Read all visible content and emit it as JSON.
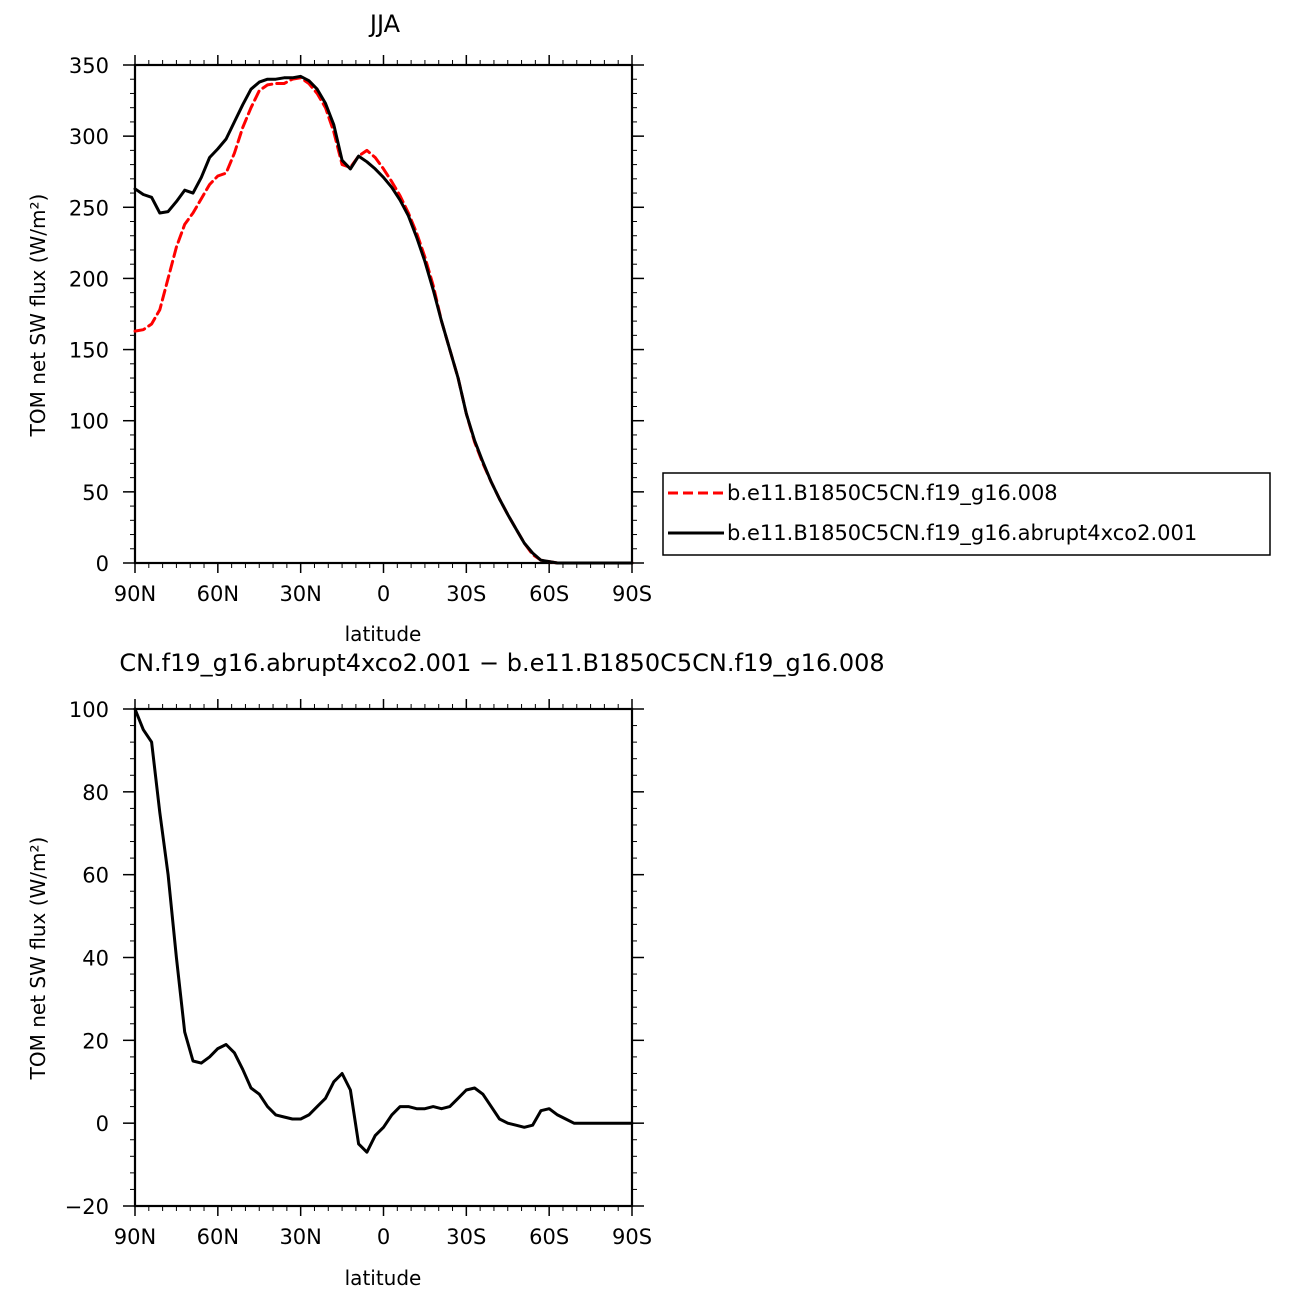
{
  "chart_data": [
    {
      "type": "line",
      "title": "JJA",
      "xlabel": "latitude",
      "ylabel": "TOM net SW flux (W/m²)",
      "xlim": [
        -90,
        90
      ],
      "ylim": [
        0,
        350
      ],
      "xticks": [
        -90,
        -60,
        -30,
        0,
        30,
        60,
        90
      ],
      "xtick_labels": [
        "90N",
        "60N",
        "30N",
        "0",
        "30S",
        "60S",
        "90S"
      ],
      "yticks": [
        0,
        50,
        100,
        150,
        200,
        250,
        300,
        350
      ],
      "ytick_labels": [
        "0",
        "50",
        "100",
        "150",
        "200",
        "250",
        "300",
        "350"
      ],
      "legend_position": "right",
      "series": [
        {
          "name": "b.e11.B1850C5CN.f19_g16.008",
          "color": "#ff0000",
          "style": "dashed",
          "x": [
            -90,
            -87,
            -84,
            -81,
            -78,
            -75,
            -72,
            -69,
            -66,
            -63,
            -60,
            -57,
            -54,
            -51,
            -48,
            -45,
            -42,
            -39,
            -36,
            -33,
            -30,
            -27,
            -24,
            -21,
            -18,
            -15,
            -12,
            -9,
            -6,
            -3,
            0,
            3,
            6,
            9,
            12,
            15,
            18,
            21,
            24,
            27,
            30,
            33,
            36,
            39,
            42,
            45,
            48,
            51,
            54,
            57,
            60,
            63,
            66,
            69,
            72,
            75,
            78,
            81,
            84,
            87,
            90
          ],
          "y": [
            163,
            164,
            168,
            178,
            200,
            222,
            238,
            246,
            256,
            266,
            272,
            274,
            288,
            306,
            320,
            332,
            336,
            337,
            337,
            340,
            341,
            337,
            330,
            320,
            303,
            280,
            278,
            286,
            290,
            285,
            277,
            268,
            258,
            246,
            232,
            215,
            195,
            170,
            150,
            130,
            105,
            85,
            70,
            57,
            45,
            34,
            24,
            14,
            6,
            2,
            1,
            0,
            0,
            0,
            0,
            0,
            0,
            0,
            0,
            0,
            0
          ]
        },
        {
          "name": "b.e11.B1850C5CN.f19_g16.abrupt4xco2.001",
          "color": "#000000",
          "style": "solid",
          "x": [
            -90,
            -87,
            -84,
            -81,
            -78,
            -75,
            -72,
            -69,
            -66,
            -63,
            -60,
            -57,
            -54,
            -51,
            -48,
            -45,
            -42,
            -39,
            -36,
            -33,
            -30,
            -27,
            -24,
            -21,
            -18,
            -15,
            -12,
            -9,
            -6,
            -3,
            0,
            3,
            6,
            9,
            12,
            15,
            18,
            21,
            24,
            27,
            30,
            33,
            36,
            39,
            42,
            45,
            48,
            51,
            54,
            57,
            60,
            63,
            66,
            69,
            72,
            75,
            78,
            81,
            84,
            87,
            90
          ],
          "y": [
            263,
            259,
            257,
            246,
            247,
            254,
            262,
            260,
            271,
            285,
            291,
            298,
            310,
            322,
            333,
            338,
            340,
            340,
            341,
            341,
            342,
            339,
            333,
            323,
            308,
            283,
            277,
            286,
            282,
            277,
            271,
            264,
            255,
            244,
            229,
            212,
            192,
            170,
            150,
            130,
            105,
            86,
            71,
            57,
            45,
            34,
            24,
            14,
            7,
            2,
            1,
            0,
            0,
            0,
            0,
            0,
            0,
            0,
            0,
            0,
            0
          ]
        }
      ]
    },
    {
      "type": "line",
      "title": "CN.f19_g16.abrupt4xco2.001 − b.e11.B1850C5CN.f19_g16.008",
      "xlabel": "latitude",
      "ylabel": "TOM net SW flux (W/m²)",
      "xlim": [
        -90,
        90
      ],
      "ylim": [
        -20,
        100
      ],
      "xticks": [
        -90,
        -60,
        -30,
        0,
        30,
        60,
        90
      ],
      "xtick_labels": [
        "90N",
        "60N",
        "30N",
        "0",
        "30S",
        "60S",
        "90S"
      ],
      "yticks": [
        -20,
        0,
        20,
        40,
        60,
        80,
        100
      ],
      "ytick_labels": [
        "−20",
        "0",
        "20",
        "40",
        "60",
        "80",
        "100"
      ],
      "series": [
        {
          "color": "#000000",
          "style": "solid",
          "x": [
            -90,
            -87,
            -84,
            -81,
            -78,
            -75,
            -72,
            -69,
            -66,
            -63,
            -60,
            -57,
            -54,
            -51,
            -48,
            -45,
            -42,
            -39,
            -36,
            -33,
            -30,
            -27,
            -24,
            -21,
            -18,
            -15,
            -12,
            -9,
            -6,
            -3,
            0,
            3,
            6,
            9,
            12,
            15,
            18,
            21,
            24,
            27,
            30,
            33,
            36,
            39,
            42,
            45,
            48,
            51,
            54,
            57,
            60,
            63,
            66,
            69,
            72,
            75,
            78,
            81,
            84,
            87,
            90
          ],
          "y": [
            100,
            95,
            92,
            75,
            60,
            40,
            22,
            15,
            14.5,
            16,
            18,
            19,
            17,
            13,
            8.5,
            7,
            4,
            2,
            1.5,
            1,
            1,
            2,
            4,
            6,
            10,
            12,
            8,
            -5,
            -7,
            -3,
            -1,
            2,
            4,
            4,
            3.5,
            3.5,
            4,
            3.5,
            4,
            6,
            8,
            8.5,
            7,
            4,
            1,
            0,
            -0.5,
            -1,
            -0.5,
            3,
            3.5,
            2,
            1,
            0,
            0,
            0,
            0,
            0,
            0,
            0,
            0
          ]
        }
      ]
    }
  ]
}
